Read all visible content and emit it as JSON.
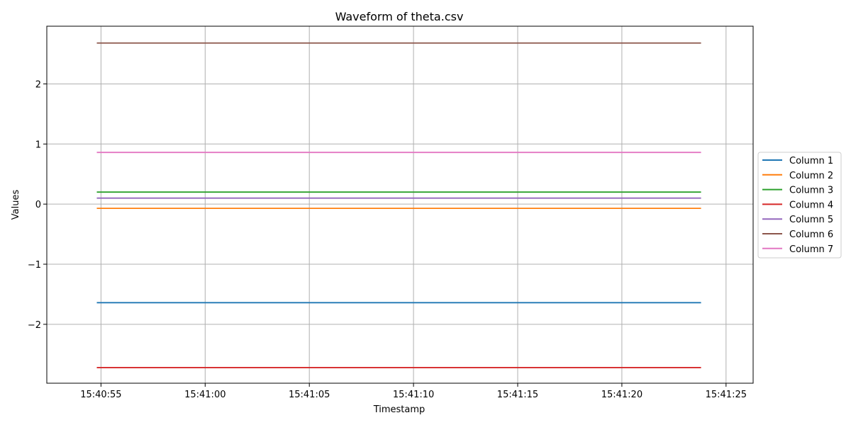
{
  "chart_data": {
    "type": "line",
    "title": "Waveform of theta.csv",
    "xlabel": "Timestamp",
    "ylabel": "Values",
    "x_ticks": [
      "15:40:55",
      "15:41:00",
      "15:41:05",
      "15:41:10",
      "15:41:15",
      "15:41:20",
      "15:41:25"
    ],
    "x_tick_seconds": [
      55,
      60,
      65,
      70,
      75,
      80,
      85
    ],
    "xlim_seconds": [
      52.4,
      86.3
    ],
    "x_start_seconds": 54.8,
    "x_end_seconds": 83.8,
    "y_ticks": [
      -2,
      -1,
      0,
      1,
      2
    ],
    "y_tick_labels": [
      "−2",
      "−1",
      "0",
      "1",
      "2"
    ],
    "ylim": [
      -2.98,
      2.96
    ],
    "grid": true,
    "legend_position": "center-right-outside",
    "series": [
      {
        "name": "Column 1",
        "color": "#1f77b4",
        "values": [
          -1.64,
          -1.64
        ]
      },
      {
        "name": "Column 2",
        "color": "#ff7f0e",
        "values": [
          -0.07,
          -0.07
        ]
      },
      {
        "name": "Column 3",
        "color": "#2ca02c",
        "values": [
          0.2,
          0.2
        ]
      },
      {
        "name": "Column 4",
        "color": "#d62728",
        "values": [
          -2.72,
          -2.72
        ]
      },
      {
        "name": "Column 5",
        "color": "#9467bd",
        "values": [
          0.1,
          0.1
        ]
      },
      {
        "name": "Column 6",
        "color": "#8c564b",
        "values": [
          2.68,
          2.68
        ]
      },
      {
        "name": "Column 7",
        "color": "#e377c2",
        "values": [
          0.86,
          0.86
        ]
      }
    ]
  }
}
